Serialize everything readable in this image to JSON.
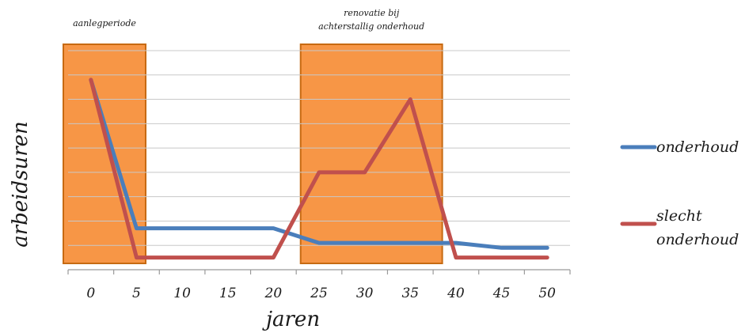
{
  "chart_data": {
    "type": "line",
    "title": "",
    "xlabel": "jaren",
    "ylabel": "arbeidsuren",
    "x": [
      0,
      5,
      10,
      15,
      20,
      25,
      30,
      35,
      40,
      45,
      50
    ],
    "xlim": [
      -2.5,
      52.5
    ],
    "ylim": [
      0,
      9
    ],
    "y_ticks_labeled": false,
    "grid": "horizontal",
    "legend_position": "right",
    "series": [
      {
        "name": "onderhoud",
        "color": "#4a7ebb",
        "values": [
          7.8,
          1.7,
          1.7,
          1.7,
          1.7,
          1.1,
          1.1,
          1.1,
          1.1,
          0.9,
          0.9
        ]
      },
      {
        "name": "slecht onderhoud",
        "color": "#c0504d",
        "values": [
          7.8,
          0.5,
          0.5,
          0.5,
          0.5,
          4.0,
          4.0,
          7.0,
          0.5,
          0.5,
          0.5
        ]
      }
    ],
    "periods": [
      {
        "label": "aanlegperiode",
        "x_start": -2.5,
        "x_end": 6,
        "color": "#f79646"
      },
      {
        "label_lines": [
          "renovatie bij",
          "achterstallig onderhoud"
        ],
        "x_start": 23.5,
        "x_end": 38.5,
        "color": "#f79646"
      }
    ]
  }
}
